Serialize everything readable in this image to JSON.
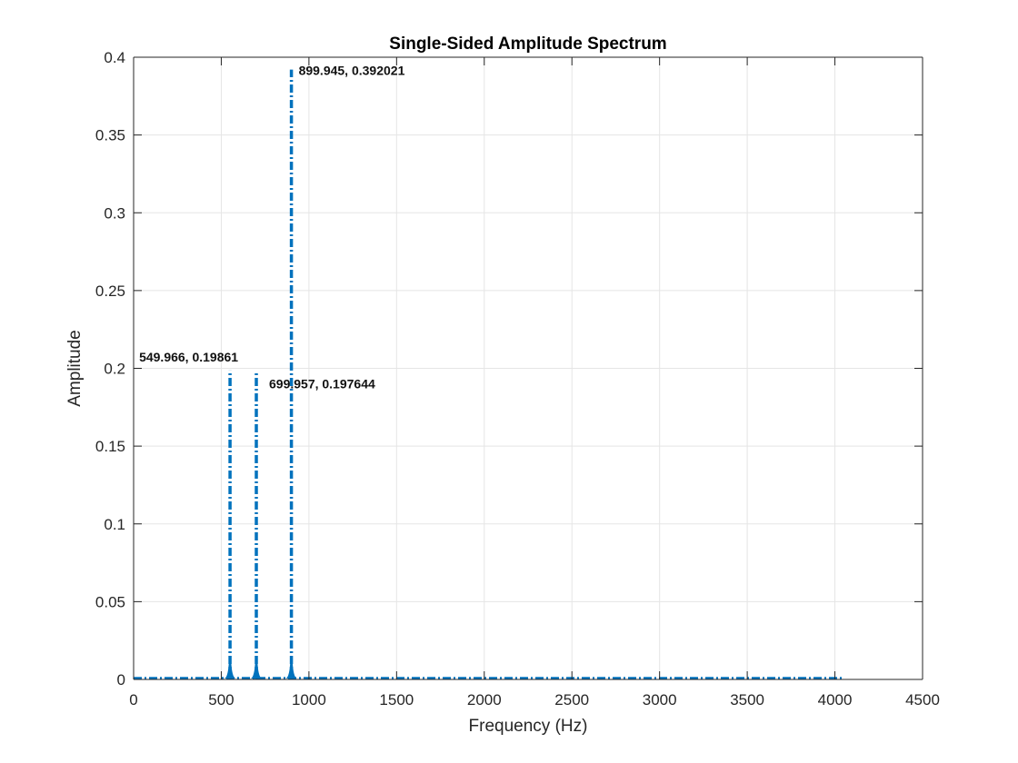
{
  "chart_data": {
    "type": "line",
    "title": "Single-Sided Amplitude Spectrum",
    "xlabel": "Frequency (Hz)",
    "ylabel": "Amplitude",
    "xlim": [
      0,
      4500
    ],
    "ylim": [
      0,
      0.4
    ],
    "xticks": [
      0,
      500,
      1000,
      1500,
      2000,
      2500,
      3000,
      3500,
      4000,
      4500
    ],
    "xtick_labels": [
      "0",
      "500",
      "1000",
      "1500",
      "2000",
      "2500",
      "3000",
      "3500",
      "4000",
      "4500"
    ],
    "yticks": [
      0,
      0.05,
      0.1,
      0.15,
      0.2,
      0.25,
      0.3,
      0.35,
      0.4
    ],
    "ytick_labels": [
      "0",
      "0.05",
      "0.1",
      "0.15",
      "0.2",
      "0.25",
      "0.3",
      "0.35",
      "0.4"
    ],
    "grid": true,
    "line_style": "dash-dot",
    "series_color": "#0072BD",
    "x_range_of_data": [
      0,
      4050
    ],
    "peaks": [
      {
        "x": 549.966,
        "y": 0.19861,
        "label": "549.966, 0.19861",
        "label_side": "above-left"
      },
      {
        "x": 699.957,
        "y": 0.197644,
        "label": "699.957, 0.197644",
        "label_side": "right"
      },
      {
        "x": 899.945,
        "y": 0.392021,
        "label": "899.945, 0.392021",
        "label_side": "right"
      }
    ]
  }
}
